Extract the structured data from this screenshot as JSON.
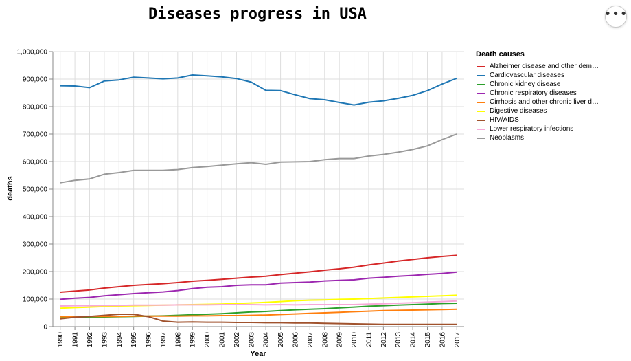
{
  "menu": {
    "icon": "ellipsis-icon",
    "label": "•••"
  },
  "chart_data": {
    "type": "line",
    "title": "Diseases progress in USA",
    "xlabel": "Year",
    "ylabel": "deaths",
    "ylim": [
      0,
      1000000
    ],
    "yticks": [
      0,
      100000,
      200000,
      300000,
      400000,
      500000,
      600000,
      700000,
      800000,
      900000,
      1000000
    ],
    "ytick_labels": [
      "0",
      "100,000",
      "200,000",
      "300,000",
      "400,000",
      "500,000",
      "600,000",
      "700,000",
      "800,000",
      "900,000",
      "1,000,000"
    ],
    "grid": true,
    "legend_title": "Death causes",
    "legend_position": "right",
    "x": [
      "1990",
      "1991",
      "1992",
      "1993",
      "1994",
      "1995",
      "1996",
      "1997",
      "1998",
      "1999",
      "2000",
      "2001",
      "2002",
      "2003",
      "2004",
      "2005",
      "2006",
      "2007",
      "2008",
      "2009",
      "2010",
      "2011",
      "2012",
      "2013",
      "2014",
      "2015",
      "2016",
      "2017"
    ],
    "series": [
      {
        "name": "Alzheimer disease and other dem…",
        "color": "#d62728",
        "values": [
          125000,
          129000,
          133000,
          140000,
          145000,
          150000,
          153000,
          156000,
          160000,
          165000,
          168000,
          172000,
          176000,
          180000,
          183000,
          189000,
          194000,
          199000,
          205000,
          210000,
          216000,
          224000,
          231000,
          238000,
          244000,
          250000,
          255000,
          259000
        ]
      },
      {
        "name": "Cardiovascular diseases",
        "color": "#1f77b4",
        "values": [
          876000,
          875000,
          869000,
          893000,
          897000,
          907000,
          904000,
          901000,
          904000,
          915000,
          912000,
          908000,
          902000,
          889000,
          859000,
          858000,
          843000,
          829000,
          825000,
          815000,
          806000,
          816000,
          821000,
          830000,
          841000,
          858000,
          882000,
          903000
        ]
      },
      {
        "name": "Chronic kidney disease",
        "color": "#2ca02c",
        "values": [
          31000,
          33000,
          34000,
          35000,
          36000,
          37000,
          38000,
          39000,
          41000,
          43000,
          45000,
          47000,
          50000,
          53000,
          55000,
          58000,
          61000,
          63000,
          65000,
          68000,
          71000,
          74000,
          76000,
          78000,
          80000,
          82000,
          84000,
          85000
        ]
      },
      {
        "name": "Chronic respiratory diseases",
        "color": "#9c27b0",
        "values": [
          99000,
          103000,
          106000,
          112000,
          116000,
          120000,
          123000,
          126000,
          131000,
          138000,
          143000,
          145000,
          150000,
          152000,
          152000,
          158000,
          160000,
          162000,
          166000,
          168000,
          170000,
          176000,
          179000,
          183000,
          186000,
          190000,
          193000,
          198000
        ]
      },
      {
        "name": "Cirrhosis and other chronic liver d…",
        "color": "#ff7f0e",
        "values": [
          36000,
          36000,
          37000,
          37000,
          37000,
          38000,
          38000,
          38000,
          38000,
          39000,
          39000,
          40000,
          40000,
          41000,
          42000,
          44000,
          46000,
          48000,
          50000,
          52000,
          54000,
          56000,
          58000,
          59000,
          60000,
          61000,
          62000,
          63000
        ]
      },
      {
        "name": "Digestive diseases",
        "color": "#ffff00",
        "values": [
          67000,
          69000,
          71000,
          73000,
          75000,
          76000,
          77000,
          78000,
          79000,
          80000,
          81000,
          82000,
          84000,
          86000,
          88000,
          91000,
          94000,
          96000,
          97000,
          99000,
          100000,
          102000,
          104000,
          106000,
          108000,
          110000,
          112000,
          114000
        ]
      },
      {
        "name": "HIV/AIDS",
        "color": "#a0522d",
        "values": [
          28000,
          34000,
          37000,
          41000,
          45000,
          45000,
          36000,
          20000,
          16000,
          17000,
          16000,
          16000,
          15000,
          15000,
          14000,
          14000,
          13000,
          13000,
          12000,
          11000,
          10000,
          9000,
          8000,
          8000,
          8000,
          8000,
          8000,
          8000
        ]
      },
      {
        "name": "Lower respiratory infections",
        "color": "#f7a8d8",
        "values": [
          75000,
          76000,
          76000,
          77000,
          77000,
          78000,
          78000,
          78000,
          79000,
          79000,
          79000,
          80000,
          80000,
          80000,
          79000,
          80000,
          79000,
          80000,
          80000,
          80000,
          80000,
          82000,
          83000,
          85000,
          87000,
          89000,
          91000,
          93000
        ]
      },
      {
        "name": "Neoplasms",
        "color": "#999999",
        "values": [
          523000,
          532000,
          537000,
          554000,
          560000,
          568000,
          568000,
          568000,
          571000,
          578000,
          582000,
          587000,
          592000,
          596000,
          590000,
          598000,
          599000,
          600000,
          607000,
          611000,
          611000,
          620000,
          626000,
          634000,
          644000,
          657000,
          680000,
          700000
        ]
      }
    ]
  }
}
